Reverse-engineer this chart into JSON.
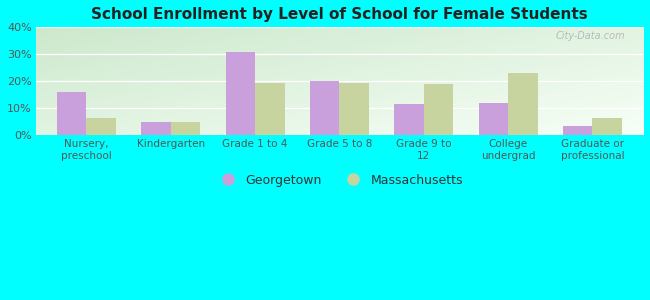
{
  "title": "School Enrollment by Level of School for Female Students",
  "categories": [
    "Nursery,\npreschool",
    "Kindergarten",
    "Grade 1 to 4",
    "Grade 5 to 8",
    "Grade 9 to\n12",
    "College\nundergrad",
    "Graduate or\nprofessional"
  ],
  "georgetown": [
    16.0,
    5.0,
    31.0,
    20.0,
    11.5,
    12.0,
    3.5
  ],
  "massachusetts": [
    6.5,
    5.0,
    19.5,
    19.5,
    19.0,
    23.0,
    6.5
  ],
  "georgetown_color": "#c9a0dc",
  "massachusetts_color": "#c8d4a0",
  "ylim": [
    0,
    40
  ],
  "yticks": [
    0,
    10,
    20,
    30,
    40
  ],
  "ytick_labels": [
    "0%",
    "10%",
    "20%",
    "30%",
    "40%"
  ],
  "background_color": "#00ffff",
  "bar_width": 0.35,
  "legend_georgetown": "Georgetown",
  "legend_massachusetts": "Massachusetts",
  "watermark": "City-Data.com",
  "grid_color": "#dddddd",
  "grad_top_left": "#c8e6c9",
  "grad_bottom_right": "#f0fff0"
}
